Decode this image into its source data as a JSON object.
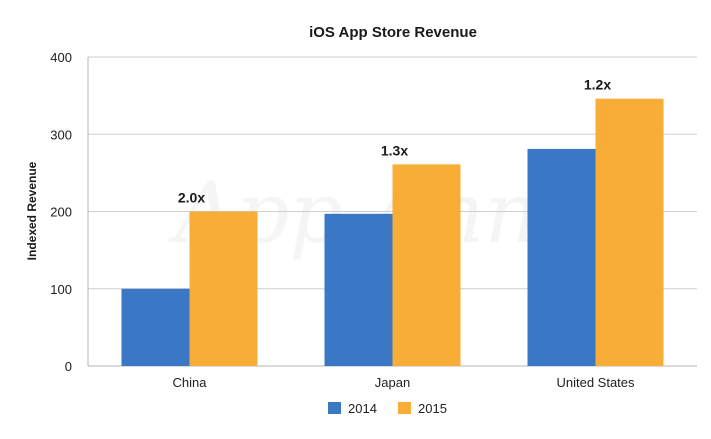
{
  "chart_data": {
    "type": "bar",
    "title": "iOS App Store Revenue",
    "xlabel": "",
    "ylabel": "Indexed Revenue",
    "ylim": [
      0,
      400
    ],
    "yticks": [
      0,
      100,
      200,
      300,
      400
    ],
    "categories": [
      "China",
      "Japan",
      "United States"
    ],
    "series": [
      {
        "name": "2014",
        "color": "#3a77c4",
        "values": [
          100,
          197,
          281
        ]
      },
      {
        "name": "2015",
        "color": "#f7ad36",
        "values": [
          200,
          261,
          346
        ]
      }
    ],
    "annotations": [
      "2.0x",
      "1.3x",
      "1.2x"
    ],
    "grid": true,
    "legend": "bottom-center",
    "watermark": "App Annie"
  }
}
